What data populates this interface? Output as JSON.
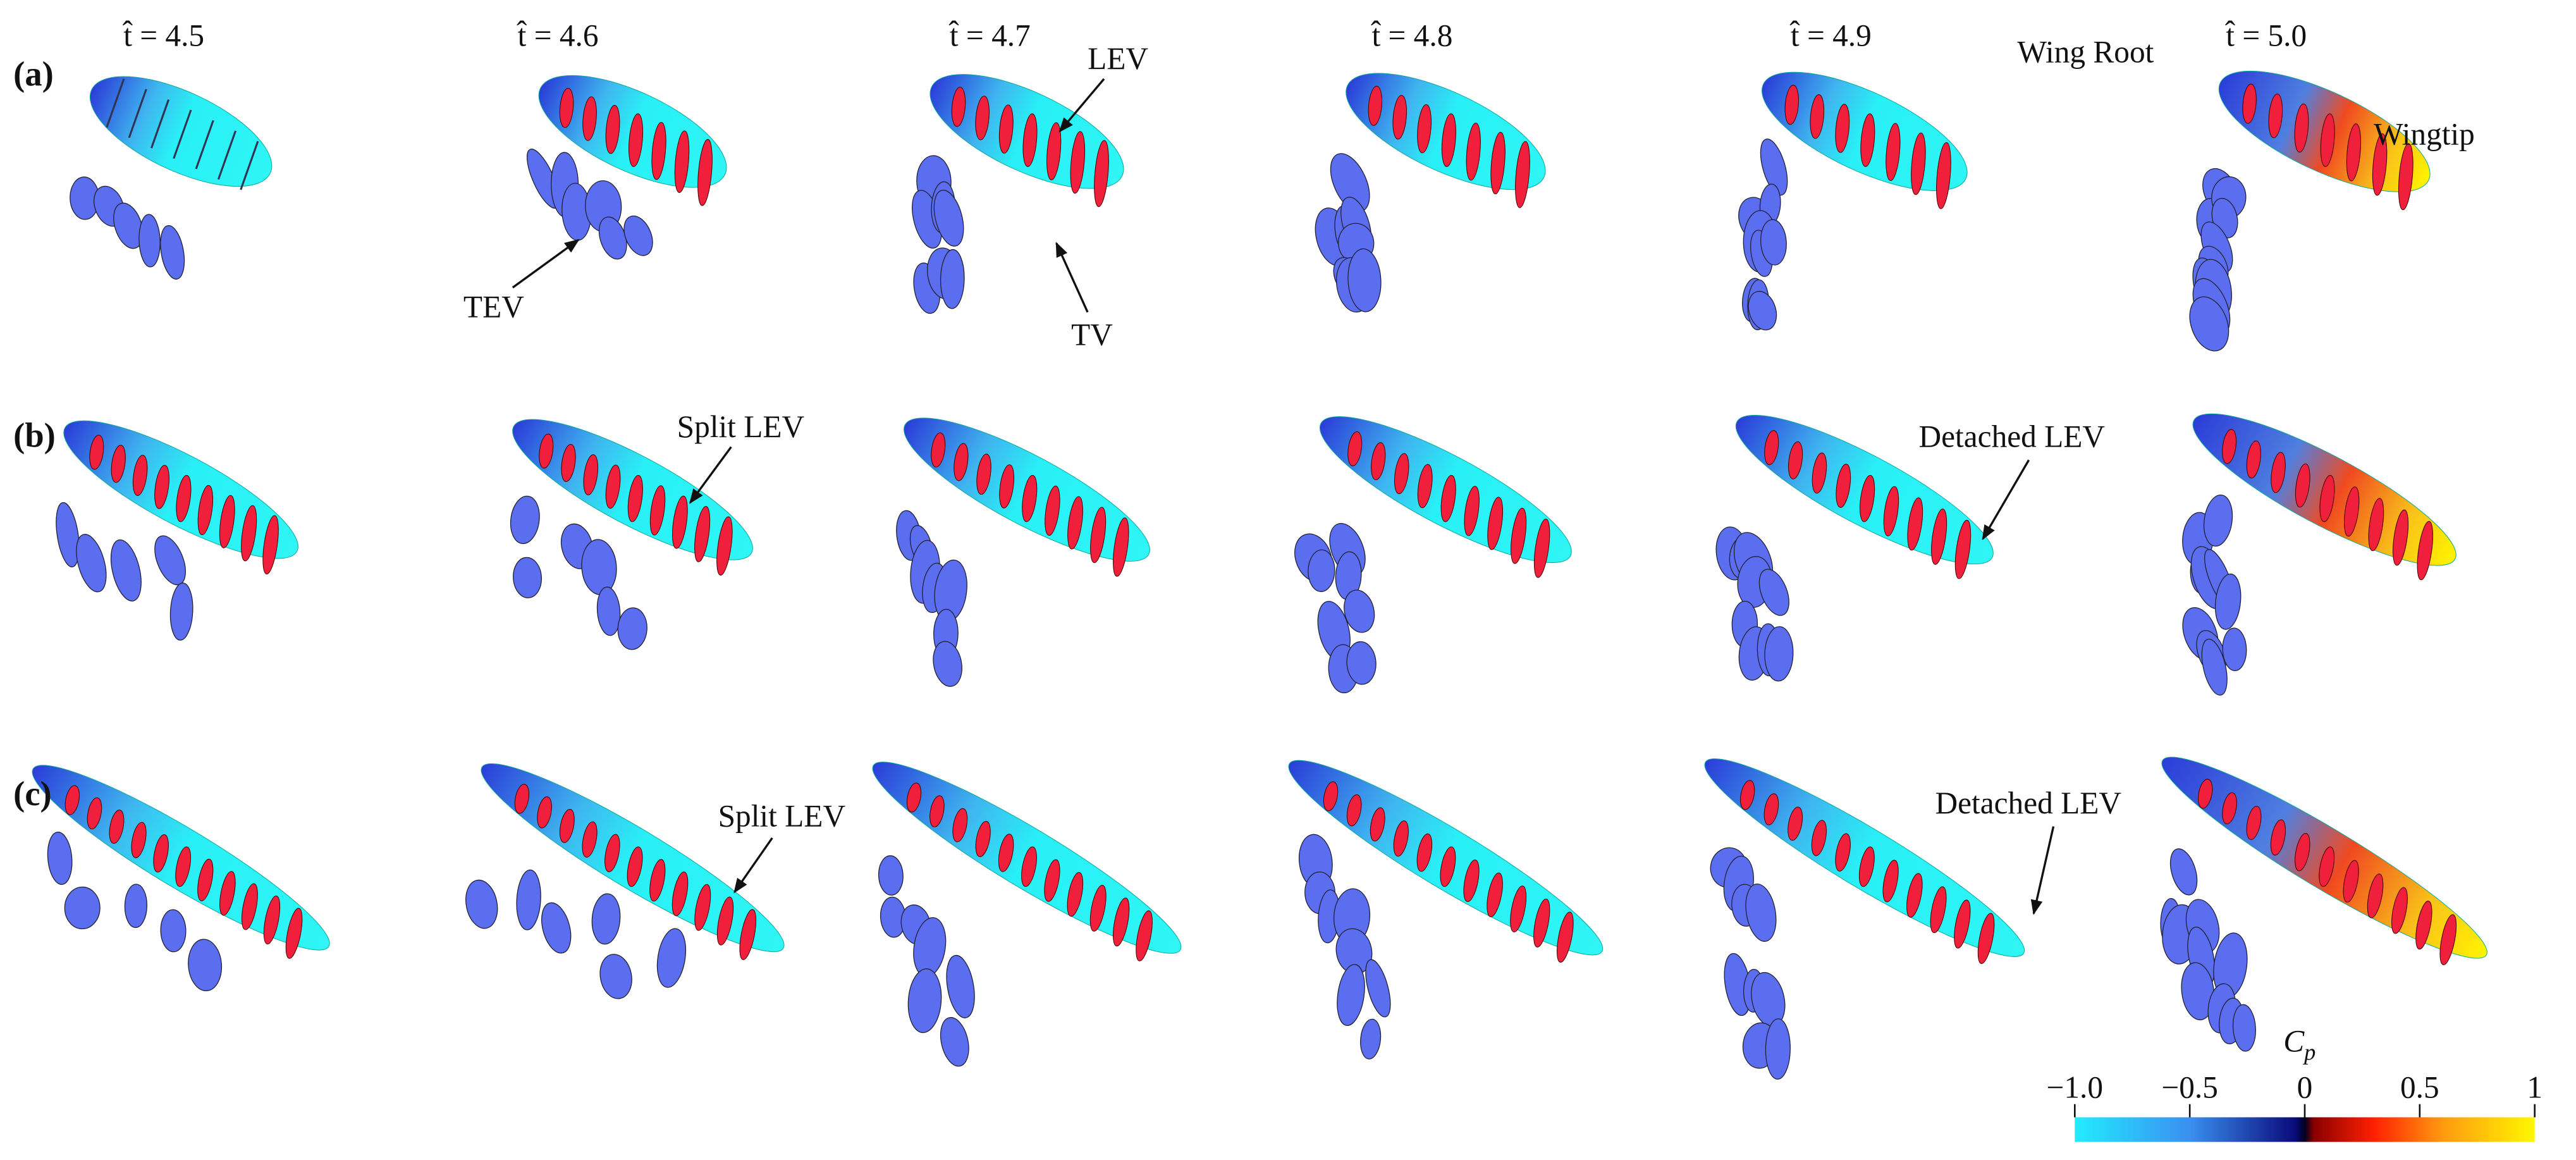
{
  "time_labels": [
    "t̂ = 4.5",
    "t̂ = 4.6",
    "t̂ = 4.7",
    "t̂ = 4.8",
    "t̂ = 4.9",
    "t̂ = 5.0"
  ],
  "row_labels": [
    "(a)",
    "(b)",
    "(c)"
  ],
  "annotations": {
    "tev": "TEV",
    "tv": "TV",
    "lev": "LEV",
    "wing_root": "Wing Root",
    "wingtip": "Wingtip",
    "split_lev_b": "Split LEV",
    "split_lev_c": "Split LEV",
    "detached_lev_b": "Detached LEV",
    "detached_lev_c": "Detached LEV"
  },
  "colorbar": {
    "label": {
      "main": "C",
      "sub": "p"
    },
    "lim": [
      -1,
      1
    ],
    "ticks": [
      {
        "value": -1,
        "label": "−1.0"
      },
      {
        "value": -0.5,
        "label": "−0.5"
      },
      0,
      0.5,
      1
    ]
  }
}
